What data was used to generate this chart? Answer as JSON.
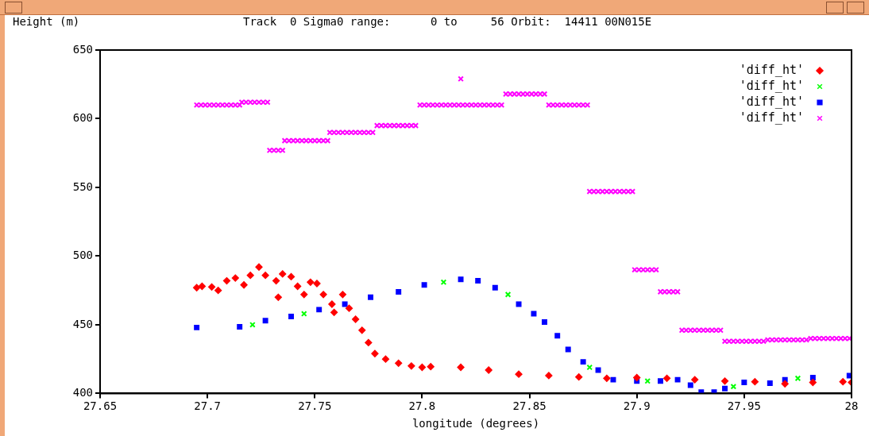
{
  "chart_data": {
    "type": "scatter",
    "title": "Track  0 Sigma0 range:      0 to     56 Orbit:  14411 00N015E",
    "xlabel": "longitude (degrees)",
    "ylabel": "Height (m)",
    "xlim": [
      27.65,
      28
    ],
    "xticks": [
      {
        "value": 27.65,
        "label": "27.65"
      },
      27.7,
      {
        "value": 27.75,
        "label": "27.75"
      },
      27.8,
      {
        "value": 27.85,
        "label": "27.85"
      },
      27.9,
      {
        "value": 27.95,
        "label": "27.95"
      },
      28
    ],
    "ylim": [
      400,
      650
    ],
    "yticks": [
      400,
      450,
      500,
      550,
      600,
      650
    ],
    "grid": false,
    "legend": "top right",
    "series": [
      {
        "name": "'diff_ht'",
        "color": "#ff0000",
        "marker": "diamond",
        "x": [
          27.695,
          27.6975,
          27.702,
          27.705,
          27.709,
          27.713,
          27.717,
          27.72,
          27.724,
          27.727,
          27.732,
          27.733,
          27.735,
          27.739,
          27.742,
          27.745,
          27.748,
          27.751,
          27.754,
          27.758,
          27.759,
          27.763,
          27.766,
          27.769,
          27.772,
          27.775,
          27.778,
          27.783,
          27.789,
          27.795,
          27.8,
          27.804,
          27.818,
          27.831,
          27.845,
          27.859,
          27.873,
          27.886,
          27.9,
          27.914,
          27.927,
          27.941,
          27.955,
          27.969,
          27.982,
          27.996,
          28.0
        ],
        "values": [
          477,
          478,
          477.5,
          475,
          482,
          484,
          479,
          486,
          492,
          486,
          482,
          470,
          487,
          485,
          478,
          472,
          481,
          480,
          472,
          465,
          459,
          472,
          462,
          454,
          446,
          437,
          429,
          425,
          422,
          420,
          419,
          419.5,
          419,
          417,
          414,
          413,
          412,
          411,
          411.5,
          411,
          410,
          409,
          408.5,
          407,
          408,
          408.5,
          408
        ]
      },
      {
        "name": "'diff_ht'",
        "color": "#00ff00",
        "marker": "cross",
        "x": [
          27.721,
          27.745,
          27.81,
          27.84,
          27.878,
          27.905,
          27.945,
          27.975
        ],
        "values": [
          450,
          458,
          481,
          472,
          419,
          409,
          405,
          411
        ]
      },
      {
        "name": "'diff_ht'",
        "color": "#0000ff",
        "marker": "square",
        "x": [
          27.695,
          27.715,
          27.727,
          27.739,
          27.752,
          27.764,
          27.776,
          27.789,
          27.801,
          27.818,
          27.826,
          27.834,
          27.845,
          27.852,
          27.857,
          27.863,
          27.868,
          27.875,
          27.882,
          27.889,
          27.9,
          27.911,
          27.919,
          27.925,
          27.93,
          27.936,
          27.941,
          27.95,
          27.962,
          27.969,
          27.982,
          27.999
        ],
        "values": [
          448,
          448.5,
          453,
          456,
          461,
          465,
          470,
          474,
          479,
          483,
          482,
          477,
          465,
          458,
          452,
          442,
          432,
          423,
          417,
          410,
          409,
          409,
          410,
          406,
          401,
          401,
          403.5,
          408,
          407.5,
          410,
          411.5,
          413
        ]
      },
      {
        "name": "'diff_ht'",
        "color": "#ff00ff",
        "marker": "cross",
        "x": [
          27.695,
          27.697,
          27.699,
          27.701,
          27.703,
          27.705,
          27.707,
          27.709,
          27.711,
          27.713,
          27.715,
          27.716,
          27.718,
          27.72,
          27.722,
          27.724,
          27.726,
          27.728,
          27.729,
          27.731,
          27.733,
          27.735,
          27.736,
          27.738,
          27.74,
          27.742,
          27.744,
          27.746,
          27.748,
          27.75,
          27.752,
          27.754,
          27.756,
          27.757,
          27.759,
          27.761,
          27.763,
          27.765,
          27.767,
          27.769,
          27.771,
          27.773,
          27.775,
          27.777,
          27.779,
          27.781,
          27.783,
          27.785,
          27.787,
          27.789,
          27.791,
          27.793,
          27.795,
          27.797,
          27.799,
          27.801,
          27.803,
          27.805,
          27.807,
          27.809,
          27.811,
          27.813,
          27.815,
          27.817,
          27.818,
          27.819,
          27.821,
          27.823,
          27.825,
          27.827,
          27.829,
          27.831,
          27.833,
          27.835,
          27.837,
          27.839,
          27.841,
          27.843,
          27.845,
          27.847,
          27.849,
          27.851,
          27.853,
          27.855,
          27.857,
          27.859,
          27.861,
          27.863,
          27.865,
          27.867,
          27.869,
          27.871,
          27.873,
          27.875,
          27.877,
          27.878,
          27.88,
          27.882,
          27.884,
          27.886,
          27.888,
          27.89,
          27.892,
          27.894,
          27.896,
          27.898,
          27.899,
          27.901,
          27.903,
          27.905,
          27.907,
          27.909,
          27.911,
          27.913,
          27.915,
          27.917,
          27.919,
          27.921,
          27.923,
          27.925,
          27.927,
          27.929,
          27.931,
          27.933,
          27.935,
          27.937,
          27.939,
          27.941,
          27.943,
          27.945,
          27.947,
          27.949,
          27.951,
          27.953,
          27.955,
          27.957,
          27.959,
          27.961,
          27.963,
          27.965,
          27.967,
          27.969,
          27.971,
          27.973,
          27.975,
          27.977,
          27.979,
          27.981,
          27.983,
          27.985,
          27.987,
          27.989,
          27.991,
          27.993,
          27.995,
          27.997,
          27.999
        ],
        "values": [
          610,
          610,
          610,
          610,
          610,
          610,
          610,
          610,
          610,
          610,
          610,
          612,
          612,
          612,
          612,
          612,
          612,
          612,
          577,
          577,
          577,
          577,
          584,
          584,
          584,
          584,
          584,
          584,
          584,
          584,
          584,
          584,
          584,
          590,
          590,
          590,
          590,
          590,
          590,
          590,
          590,
          590,
          590,
          590,
          595,
          595,
          595,
          595,
          595,
          595,
          595,
          595,
          595,
          595,
          610,
          610,
          610,
          610,
          610,
          610,
          610,
          610,
          610,
          610,
          629,
          610,
          610,
          610,
          610,
          610,
          610,
          610,
          610,
          610,
          610,
          618,
          618,
          618,
          618,
          618,
          618,
          618,
          618,
          618,
          618,
          610,
          610,
          610,
          610,
          610,
          610,
          610,
          610,
          610,
          610,
          547,
          547,
          547,
          547,
          547,
          547,
          547,
          547,
          547,
          547,
          547,
          490,
          490,
          490,
          490,
          490,
          490,
          474,
          474,
          474,
          474,
          474,
          446,
          446,
          446,
          446,
          446,
          446,
          446,
          446,
          446,
          446,
          438,
          438,
          438,
          438,
          438,
          438,
          438,
          438,
          438,
          438,
          439,
          439,
          439,
          439,
          439,
          439,
          439,
          439,
          439,
          439,
          440,
          440,
          440,
          440,
          440,
          440,
          440,
          440,
          440,
          440
        ]
      }
    ]
  }
}
